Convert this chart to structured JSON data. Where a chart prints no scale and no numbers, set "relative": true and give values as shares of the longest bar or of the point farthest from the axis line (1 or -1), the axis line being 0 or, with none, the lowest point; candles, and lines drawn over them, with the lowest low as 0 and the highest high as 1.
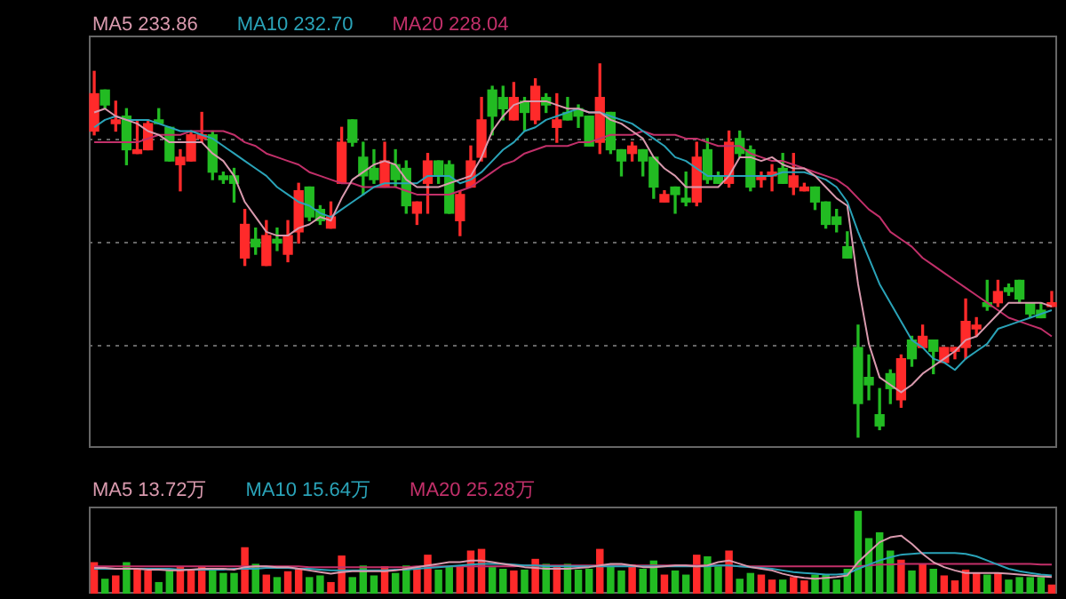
{
  "chart_data": [
    {
      "type": "candlestick",
      "relative": true,
      "grid": true,
      "legend": "top left",
      "marker": "none",
      "categories": [
        null,
        null,
        null,
        null,
        null,
        null,
        null,
        null,
        null,
        null,
        null,
        null,
        null,
        null,
        null,
        null,
        null,
        null,
        null,
        null,
        null,
        null,
        null,
        null,
        null,
        null,
        null,
        null,
        null,
        null,
        null,
        null,
        null,
        null,
        null,
        null,
        null,
        null,
        null,
        null,
        null,
        null,
        null,
        null,
        null,
        null,
        null,
        null,
        null,
        null,
        null,
        null,
        null,
        null,
        null,
        null,
        null,
        null,
        null,
        null,
        null,
        null,
        null,
        null,
        null,
        null,
        null,
        null,
        null,
        null,
        null,
        null,
        null,
        null,
        null,
        null,
        null,
        null,
        null,
        null,
        null,
        null,
        null,
        null,
        null,
        null,
        null,
        null,
        null,
        null
      ],
      "ohlc": [
        [
          0.82,
          0.98,
          0.81,
          0.92
        ],
        [
          0.93,
          0.93,
          0.88,
          0.89
        ],
        [
          0.84,
          0.9,
          0.82,
          0.85
        ],
        [
          0.86,
          0.88,
          0.73,
          0.77
        ],
        [
          0.76,
          0.85,
          0.76,
          0.77
        ],
        [
          0.77,
          0.85,
          0.77,
          0.84
        ],
        [
          0.85,
          0.88,
          0.84,
          0.84
        ],
        [
          0.83,
          0.83,
          0.74,
          0.74
        ],
        [
          0.73,
          0.77,
          0.66,
          0.75
        ],
        [
          0.74,
          0.82,
          0.74,
          0.81
        ],
        [
          0.8,
          0.87,
          0.79,
          0.81
        ],
        [
          0.81,
          0.82,
          0.69,
          0.71
        ],
        [
          0.7,
          0.71,
          0.68,
          0.69
        ],
        [
          0.7,
          0.72,
          0.63,
          0.68
        ],
        [
          0.48,
          0.61,
          0.46,
          0.57
        ],
        [
          0.53,
          0.56,
          0.49,
          0.51
        ],
        [
          0.46,
          0.58,
          0.46,
          0.54
        ],
        [
          0.53,
          0.56,
          0.5,
          0.52
        ],
        [
          0.49,
          0.58,
          0.47,
          0.54
        ],
        [
          0.55,
          0.68,
          0.52,
          0.66
        ],
        [
          0.67,
          0.67,
          0.58,
          0.59
        ],
        [
          0.61,
          0.62,
          0.57,
          0.58
        ],
        [
          0.56,
          0.63,
          0.56,
          0.59
        ],
        [
          0.68,
          0.83,
          0.68,
          0.79
        ],
        [
          0.85,
          0.85,
          0.78,
          0.79
        ],
        [
          0.75,
          0.79,
          0.65,
          0.7
        ],
        [
          0.72,
          0.77,
          0.68,
          0.69
        ],
        [
          0.67,
          0.79,
          0.67,
          0.74
        ],
        [
          0.73,
          0.77,
          0.67,
          0.69
        ],
        [
          0.72,
          0.74,
          0.6,
          0.62
        ],
        [
          0.6,
          0.63,
          0.57,
          0.63
        ],
        [
          0.68,
          0.76,
          0.6,
          0.74
        ],
        [
          0.74,
          0.74,
          0.68,
          0.7
        ],
        [
          0.73,
          0.74,
          0.6,
          0.6
        ],
        [
          0.58,
          0.66,
          0.54,
          0.65
        ],
        [
          0.67,
          0.78,
          0.67,
          0.74
        ],
        [
          0.75,
          0.91,
          0.74,
          0.85
        ],
        [
          0.93,
          0.94,
          0.81,
          0.86
        ],
        [
          0.91,
          0.94,
          0.85,
          0.88
        ],
        [
          0.85,
          0.95,
          0.85,
          0.91
        ],
        [
          0.9,
          0.91,
          0.82,
          0.87
        ],
        [
          0.85,
          0.96,
          0.84,
          0.94
        ],
        [
          0.91,
          0.92,
          0.87,
          0.89
        ],
        [
          0.83,
          0.92,
          0.79,
          0.85
        ],
        [
          0.87,
          0.91,
          0.85,
          0.85
        ],
        [
          0.88,
          0.89,
          0.83,
          0.86
        ],
        [
          0.86,
          0.86,
          0.78,
          0.78
        ],
        [
          0.79,
          1,
          0.76,
          0.91
        ],
        [
          0.87,
          0.87,
          0.76,
          0.77
        ],
        [
          0.77,
          0.77,
          0.7,
          0.74
        ],
        [
          0.76,
          0.79,
          0.74,
          0.78
        ],
        [
          0.77,
          0.77,
          0.7,
          0.74
        ],
        [
          0.75,
          0.75,
          0.64,
          0.67
        ],
        [
          0.63,
          0.66,
          0.63,
          0.65
        ],
        [
          0.67,
          0.67,
          0.6,
          0.65
        ],
        [
          0.64,
          0.71,
          0.62,
          0.63
        ],
        [
          0.63,
          0.79,
          0.62,
          0.75
        ],
        [
          0.77,
          0.8,
          0.68,
          0.69
        ],
        [
          0.7,
          0.71,
          0.68,
          0.68
        ],
        [
          0.68,
          0.82,
          0.67,
          0.79
        ],
        [
          0.8,
          0.82,
          0.75,
          0.76
        ],
        [
          0.77,
          0.78,
          0.66,
          0.67
        ],
        [
          0.69,
          0.71,
          0.67,
          0.7
        ],
        [
          0.7,
          0.73,
          0.66,
          0.71
        ],
        [
          0.72,
          0.76,
          0.68,
          0.68
        ],
        [
          0.67,
          0.76,
          0.65,
          0.7
        ],
        [
          0.66,
          0.68,
          0.66,
          0.67
        ],
        [
          0.67,
          0.67,
          0.61,
          0.63
        ],
        [
          0.63,
          0.63,
          0.56,
          0.57
        ],
        [
          0.59,
          0.61,
          0.55,
          0.57
        ],
        [
          0.51,
          0.55,
          0.48,
          0.48
        ],
        [
          0.24,
          0.3,
          0,
          0.09
        ],
        [
          0.16,
          0.22,
          0.1,
          0.14
        ],
        [
          0.06,
          0.13,
          0.02,
          0.03
        ],
        [
          0.17,
          0.18,
          0.09,
          0.13
        ],
        [
          0.1,
          0.22,
          0.08,
          0.21
        ],
        [
          0.26,
          0.27,
          0.19,
          0.21
        ],
        [
          0.24,
          0.3,
          0.24,
          0.27
        ],
        [
          0.26,
          0.26,
          0.17,
          0.23
        ],
        [
          0.2,
          0.24,
          0.2,
          0.24
        ],
        [
          0.23,
          0.24,
          0.21,
          0.24
        ],
        [
          0.24,
          0.37,
          0.21,
          0.31
        ],
        [
          0.29,
          0.32,
          0.27,
          0.3
        ],
        [
          0.36,
          0.42,
          0.34,
          0.35
        ],
        [
          0.36,
          0.42,
          0.35,
          0.39
        ],
        [
          0.4,
          0.41,
          0.38,
          0.39
        ],
        [
          0.42,
          0.42,
          0.36,
          0.37
        ],
        [
          0.36,
          0.36,
          0.32,
          0.33
        ],
        [
          0.34,
          0.36,
          0.32,
          0.32
        ],
        [
          0.35,
          0.39,
          0.35,
          0.36
        ]
      ],
      "colors": [
        "#ff2a2a",
        "#22bb22",
        "#ff2a2a",
        "#22bb22",
        "#ff2a2a",
        "#ff2a2a",
        "#22bb22",
        "#22bb22",
        "#ff2a2a",
        "#ff2a2a",
        "#ff2a2a",
        "#22bb22",
        "#22bb22",
        "#22bb22",
        "#ff2a2a",
        "#22bb22",
        "#ff2a2a",
        "#22bb22",
        "#ff2a2a",
        "#ff2a2a",
        "#22bb22",
        "#22bb22",
        "#ff2a2a",
        "#ff2a2a",
        "#22bb22",
        "#22bb22",
        "#22bb22",
        "#ff2a2a",
        "#22bb22",
        "#22bb22",
        "#ff2a2a",
        "#ff2a2a",
        "#22bb22",
        "#22bb22",
        "#ff2a2a",
        "#ff2a2a",
        "#ff2a2a",
        "#22bb22",
        "#22bb22",
        "#ff2a2a",
        "#22bb22",
        "#ff2a2a",
        "#22bb22",
        "#ff2a2a",
        "#22bb22",
        "#22bb22",
        "#22bb22",
        "#ff2a2a",
        "#22bb22",
        "#22bb22",
        "#ff2a2a",
        "#22bb22",
        "#22bb22",
        "#ff2a2a",
        "#22bb22",
        "#22bb22",
        "#ff2a2a",
        "#22bb22",
        "#22bb22",
        "#ff2a2a",
        "#22bb22",
        "#22bb22",
        "#ff2a2a",
        "#ff2a2a",
        "#22bb22",
        "#ff2a2a",
        "#ff2a2a",
        "#22bb22",
        "#22bb22",
        "#22bb22",
        "#22bb22",
        "#22bb22",
        "#22bb22",
        "#22bb22",
        "#22bb22",
        "#ff2a2a",
        "#22bb22",
        "#ff2a2a",
        "#22bb22",
        "#ff2a2a",
        "#ff2a2a",
        "#ff2a2a",
        "#ff2a2a",
        "#22bb22",
        "#ff2a2a",
        "#22bb22",
        "#22bb22",
        "#22bb22",
        "#22bb22",
        "#ff2a2a"
      ],
      "series": [
        {
          "type": "line",
          "name": "MA5 233.86",
          "color": "#d99aae",
          "values": [
            0.87,
            0.88,
            0.86,
            0.85,
            0.84,
            0.82,
            0.81,
            0.79,
            0.79,
            0.79,
            0.79,
            0.76,
            0.74,
            0.7,
            0.63,
            0.59,
            0.55,
            0.54,
            0.54,
            0.56,
            0.57,
            0.59,
            0.58,
            0.64,
            0.69,
            0.71,
            0.73,
            0.74,
            0.73,
            0.69,
            0.67,
            0.67,
            0.67,
            0.68,
            0.69,
            0.7,
            0.75,
            0.82,
            0.86,
            0.89,
            0.9,
            0.9,
            0.9,
            0.89,
            0.88,
            0.88,
            0.87,
            0.87,
            0.85,
            0.84,
            0.82,
            0.8,
            0.75,
            0.72,
            0.7,
            0.67,
            0.67,
            0.67,
            0.67,
            0.7,
            0.75,
            0.75,
            0.74,
            0.75,
            0.73,
            0.72,
            0.72,
            0.7,
            0.67,
            0.64,
            0.62,
            0.41,
            0.25,
            0.16,
            0.14,
            0.12,
            0.14,
            0.17,
            0.19,
            0.21,
            0.23,
            0.26,
            0.27,
            0.3,
            0.33,
            0.36,
            0.36,
            0.36,
            0.36,
            0.35
          ]
        },
        {
          "type": "line",
          "name": "MA10 232.70",
          "color": "#2aa3b8",
          "values": [
            0.83,
            0.85,
            0.86,
            0.85,
            0.85,
            0.85,
            0.84,
            0.83,
            0.82,
            0.82,
            0.81,
            0.8,
            0.78,
            0.76,
            0.74,
            0.72,
            0.7,
            0.67,
            0.65,
            0.63,
            0.62,
            0.6,
            0.59,
            0.61,
            0.63,
            0.65,
            0.67,
            0.68,
            0.68,
            0.68,
            0.68,
            0.7,
            0.7,
            0.7,
            0.68,
            0.69,
            0.71,
            0.74,
            0.77,
            0.79,
            0.82,
            0.83,
            0.85,
            0.86,
            0.87,
            0.88,
            0.87,
            0.87,
            0.86,
            0.85,
            0.84,
            0.82,
            0.8,
            0.78,
            0.75,
            0.74,
            0.72,
            0.7,
            0.7,
            0.7,
            0.7,
            0.7,
            0.7,
            0.7,
            0.71,
            0.71,
            0.71,
            0.7,
            0.69,
            0.67,
            0.63,
            0.55,
            0.48,
            0.41,
            0.36,
            0.31,
            0.26,
            0.24,
            0.21,
            0.2,
            0.18,
            0.21,
            0.23,
            0.25,
            0.29,
            0.3,
            0.31,
            0.32,
            0.33,
            0.34
          ]
        },
        {
          "type": "line",
          "name": "MA20 228.04",
          "color": "#c2306a",
          "values": [
            0.79,
            0.79,
            0.79,
            0.79,
            0.79,
            0.8,
            0.81,
            0.81,
            0.81,
            0.82,
            0.82,
            0.82,
            0.82,
            0.81,
            0.79,
            0.78,
            0.76,
            0.75,
            0.74,
            0.73,
            0.71,
            0.7,
            0.69,
            0.68,
            0.68,
            0.67,
            0.67,
            0.67,
            0.67,
            0.66,
            0.65,
            0.65,
            0.65,
            0.65,
            0.66,
            0.67,
            0.69,
            0.71,
            0.73,
            0.74,
            0.76,
            0.77,
            0.78,
            0.78,
            0.78,
            0.79,
            0.79,
            0.8,
            0.81,
            0.81,
            0.81,
            0.82,
            0.81,
            0.81,
            0.81,
            0.8,
            0.8,
            0.79,
            0.78,
            0.78,
            0.78,
            0.76,
            0.75,
            0.74,
            0.74,
            0.73,
            0.72,
            0.71,
            0.7,
            0.69,
            0.67,
            0.64,
            0.61,
            0.59,
            0.55,
            0.53,
            0.51,
            0.48,
            0.46,
            0.44,
            0.42,
            0.4,
            0.38,
            0.36,
            0.34,
            0.32,
            0.31,
            0.3,
            0.29,
            0.27
          ]
        }
      ]
    },
    {
      "type": "bar",
      "relative": true,
      "legend": "top left",
      "marker": "none",
      "categories": [
        null,
        null,
        null,
        null,
        null,
        null,
        null,
        null,
        null,
        null,
        null,
        null,
        null,
        null,
        null,
        null,
        null,
        null,
        null,
        null,
        null,
        null,
        null,
        null,
        null,
        null,
        null,
        null,
        null,
        null,
        null,
        null,
        null,
        null,
        null,
        null,
        null,
        null,
        null,
        null,
        null,
        null,
        null,
        null,
        null,
        null,
        null,
        null,
        null,
        null,
        null,
        null,
        null,
        null,
        null,
        null,
        null,
        null,
        null,
        null,
        null,
        null,
        null,
        null,
        null,
        null,
        null,
        null,
        null,
        null,
        null,
        null,
        null,
        null,
        null,
        null,
        null,
        null,
        null,
        null,
        null,
        null,
        null,
        null,
        null,
        null,
        null,
        null,
        null,
        null
      ],
      "series": [
        {
          "type": "bar",
          "values": [
            0.38,
            0.18,
            0.22,
            0.38,
            0.29,
            0.28,
            0.14,
            0.29,
            0.33,
            0.3,
            0.33,
            0.3,
            0.25,
            0.25,
            0.56,
            0.36,
            0.23,
            0.2,
            0.27,
            0.3,
            0.2,
            0.22,
            0.14,
            0.46,
            0.2,
            0.34,
            0.22,
            0.33,
            0.25,
            0.34,
            0.33,
            0.47,
            0.29,
            0.33,
            0.34,
            0.52,
            0.54,
            0.32,
            0.3,
            0.28,
            0.29,
            0.42,
            0.36,
            0.33,
            0.36,
            0.29,
            0.3,
            0.54,
            0.35,
            0.28,
            0.35,
            0.3,
            0.4,
            0.23,
            0.28,
            0.23,
            0.47,
            0.45,
            0.33,
            0.52,
            0.18,
            0.25,
            0.23,
            0.17,
            0.17,
            0.2,
            0.16,
            0.23,
            0.23,
            0.17,
            0.3,
            1,
            0.67,
            0.74,
            0.52,
            0.41,
            0.28,
            0.36,
            0.3,
            0.22,
            0.16,
            0.29,
            0.25,
            0.23,
            0.25,
            0.17,
            0.2,
            0.2,
            0.2,
            0.11
          ],
          "colors": [
            "#ff2a2a",
            "#22bb22",
            "#ff2a2a",
            "#22bb22",
            "#ff2a2a",
            "#ff2a2a",
            "#22bb22",
            "#22bb22",
            "#ff2a2a",
            "#ff2a2a",
            "#ff2a2a",
            "#22bb22",
            "#22bb22",
            "#22bb22",
            "#ff2a2a",
            "#22bb22",
            "#ff2a2a",
            "#22bb22",
            "#ff2a2a",
            "#ff2a2a",
            "#22bb22",
            "#22bb22",
            "#ff2a2a",
            "#ff2a2a",
            "#22bb22",
            "#22bb22",
            "#22bb22",
            "#ff2a2a",
            "#22bb22",
            "#22bb22",
            "#ff2a2a",
            "#ff2a2a",
            "#22bb22",
            "#22bb22",
            "#ff2a2a",
            "#ff2a2a",
            "#ff2a2a",
            "#22bb22",
            "#22bb22",
            "#ff2a2a",
            "#22bb22",
            "#ff2a2a",
            "#22bb22",
            "#ff2a2a",
            "#22bb22",
            "#22bb22",
            "#22bb22",
            "#ff2a2a",
            "#22bb22",
            "#22bb22",
            "#ff2a2a",
            "#22bb22",
            "#22bb22",
            "#ff2a2a",
            "#22bb22",
            "#22bb22",
            "#ff2a2a",
            "#22bb22",
            "#22bb22",
            "#ff2a2a",
            "#22bb22",
            "#22bb22",
            "#ff2a2a",
            "#ff2a2a",
            "#22bb22",
            "#ff2a2a",
            "#ff2a2a",
            "#22bb22",
            "#22bb22",
            "#22bb22",
            "#22bb22",
            "#22bb22",
            "#22bb22",
            "#22bb22",
            "#22bb22",
            "#ff2a2a",
            "#22bb22",
            "#ff2a2a",
            "#22bb22",
            "#ff2a2a",
            "#ff2a2a",
            "#ff2a2a",
            "#ff2a2a",
            "#22bb22",
            "#ff2a2a",
            "#22bb22",
            "#22bb22",
            "#22bb22",
            "#22bb22",
            "#ff2a2a"
          ]
        },
        {
          "type": "line",
          "name": "MA5 13.72万",
          "color": "#d99aae",
          "values": [
            0.31,
            0.31,
            0.3,
            0.3,
            0.3,
            0.29,
            0.29,
            0.28,
            0.28,
            0.29,
            0.3,
            0.3,
            0.3,
            0.29,
            0.32,
            0.33,
            0.33,
            0.32,
            0.32,
            0.3,
            0.28,
            0.26,
            0.24,
            0.26,
            0.27,
            0.27,
            0.27,
            0.27,
            0.28,
            0.3,
            0.32,
            0.34,
            0.36,
            0.38,
            0.38,
            0.4,
            0.4,
            0.38,
            0.36,
            0.34,
            0.32,
            0.31,
            0.3,
            0.3,
            0.3,
            0.31,
            0.32,
            0.34,
            0.36,
            0.36,
            0.34,
            0.32,
            0.32,
            0.33,
            0.34,
            0.34,
            0.33,
            0.34,
            0.38,
            0.4,
            0.36,
            0.32,
            0.3,
            0.28,
            0.24,
            0.21,
            0.19,
            0.18,
            0.19,
            0.2,
            0.22,
            0.38,
            0.5,
            0.62,
            0.68,
            0.7,
            0.6,
            0.48,
            0.38,
            0.32,
            0.28,
            0.25,
            0.25,
            0.25,
            0.25,
            0.24,
            0.23,
            0.22,
            0.21,
            0.2
          ]
        },
        {
          "type": "line",
          "name": "MA10 15.64万",
          "color": "#2aa3b8",
          "values": [
            0.3,
            0.3,
            0.3,
            0.3,
            0.3,
            0.3,
            0.3,
            0.3,
            0.29,
            0.29,
            0.29,
            0.29,
            0.29,
            0.3,
            0.3,
            0.3,
            0.31,
            0.31,
            0.31,
            0.3,
            0.3,
            0.29,
            0.28,
            0.28,
            0.28,
            0.28,
            0.28,
            0.28,
            0.29,
            0.29,
            0.3,
            0.31,
            0.32,
            0.33,
            0.34,
            0.35,
            0.36,
            0.36,
            0.36,
            0.35,
            0.34,
            0.34,
            0.33,
            0.33,
            0.33,
            0.33,
            0.33,
            0.33,
            0.33,
            0.33,
            0.33,
            0.33,
            0.33,
            0.33,
            0.33,
            0.33,
            0.33,
            0.33,
            0.34,
            0.34,
            0.33,
            0.32,
            0.31,
            0.3,
            0.28,
            0.26,
            0.25,
            0.24,
            0.23,
            0.23,
            0.24,
            0.3,
            0.35,
            0.4,
            0.44,
            0.47,
            0.48,
            0.49,
            0.49,
            0.49,
            0.49,
            0.48,
            0.45,
            0.4,
            0.35,
            0.3,
            0.27,
            0.25,
            0.23,
            0.22
          ]
        },
        {
          "type": "line",
          "name": "MA20 25.28万",
          "color": "#c2306a",
          "values": [
            0.33,
            0.33,
            0.33,
            0.33,
            0.33,
            0.33,
            0.33,
            0.33,
            0.33,
            0.33,
            0.33,
            0.33,
            0.33,
            0.33,
            0.33,
            0.33,
            0.33,
            0.33,
            0.33,
            0.33,
            0.32,
            0.32,
            0.32,
            0.32,
            0.32,
            0.32,
            0.32,
            0.32,
            0.32,
            0.32,
            0.33,
            0.33,
            0.33,
            0.33,
            0.33,
            0.33,
            0.33,
            0.33,
            0.33,
            0.33,
            0.34,
            0.34,
            0.34,
            0.34,
            0.34,
            0.34,
            0.34,
            0.34,
            0.34,
            0.34,
            0.34,
            0.34,
            0.34,
            0.34,
            0.34,
            0.34,
            0.34,
            0.34,
            0.34,
            0.34,
            0.33,
            0.33,
            0.33,
            0.33,
            0.33,
            0.33,
            0.33,
            0.33,
            0.33,
            0.33,
            0.33,
            0.33,
            0.34,
            0.35,
            0.35,
            0.36,
            0.36,
            0.36,
            0.36,
            0.36,
            0.36,
            0.36,
            0.36,
            0.36,
            0.36,
            0.36,
            0.36,
            0.36,
            0.35,
            0.35
          ]
        }
      ]
    }
  ]
}
